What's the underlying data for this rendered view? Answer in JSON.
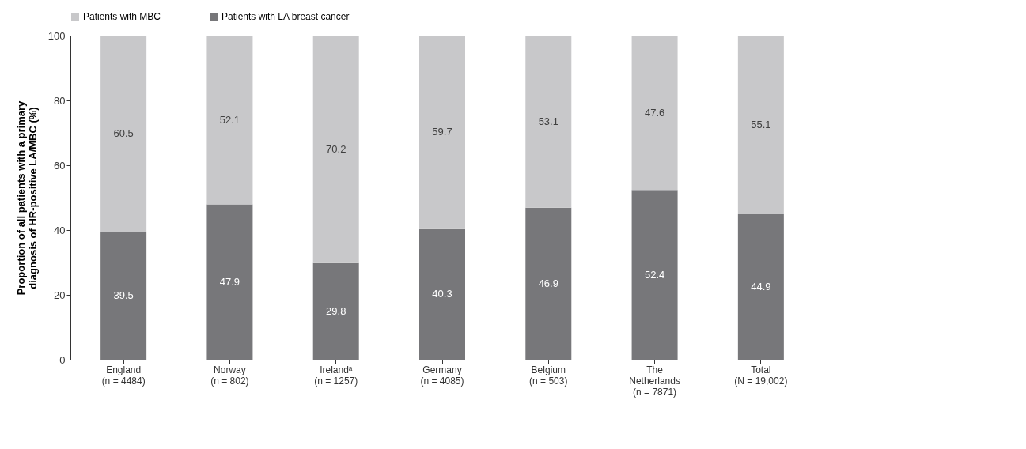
{
  "chart_data": {
    "type": "bar",
    "stacked": true,
    "ylabel": "Proportion of all patients with a primary\ndiagnosis of HR-positive LA/MBC (%)",
    "categories": [
      "England\n(n = 4484)",
      "Norway\n(n = 802)",
      "Irelandᵃ\n(n = 1257)",
      "Germany\n(n = 4085)",
      "Belgium\n(n = 503)",
      "The\nNetherlands\n(n = 7871)",
      "Total\n(N = 19,002)"
    ],
    "series": [
      {
        "name": "Patients with LA breast cancer",
        "color": "#77777a",
        "values": [
          39.5,
          47.9,
          29.8,
          40.3,
          46.9,
          52.4,
          44.9
        ]
      },
      {
        "name": "Patients with MBC",
        "color": "#c8c8ca",
        "values": [
          60.5,
          52.1,
          70.2,
          59.7,
          53.1,
          47.6,
          55.1
        ]
      }
    ],
    "ylim": [
      0,
      100
    ],
    "yticks": [
      0,
      20,
      40,
      60,
      80,
      100
    ],
    "grid": false,
    "legend": "top",
    "data_labels": true
  }
}
